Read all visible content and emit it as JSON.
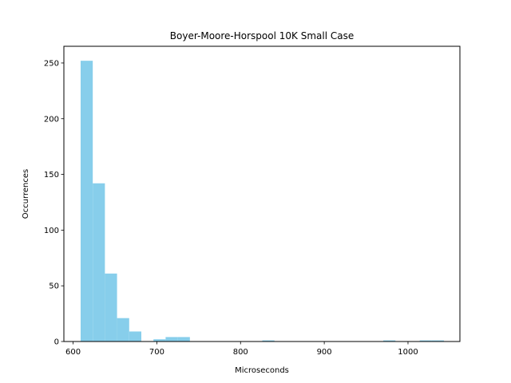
{
  "chart_data": {
    "type": "bar",
    "title": "Boyer-Moore-Horspool 10K Small Case",
    "xlabel": "Microseconds",
    "ylabel": "Occurrences",
    "xlim": [
      589,
      1062
    ],
    "ylim": [
      0,
      265
    ],
    "xticks": [
      600,
      700,
      800,
      900,
      1000
    ],
    "yticks": [
      0,
      50,
      100,
      150,
      200,
      250
    ],
    "bar_color": "#87ceeb",
    "grid": false,
    "bins": [
      {
        "x0": 609.0,
        "x1": 623.5,
        "value": 252
      },
      {
        "x0": 623.5,
        "x1": 638.0,
        "value": 142
      },
      {
        "x0": 638.0,
        "x1": 652.5,
        "value": 61
      },
      {
        "x0": 652.5,
        "x1": 667.0,
        "value": 21
      },
      {
        "x0": 667.0,
        "x1": 681.5,
        "value": 9
      },
      {
        "x0": 696.0,
        "x1": 710.5,
        "value": 2
      },
      {
        "x0": 710.5,
        "x1": 725.0,
        "value": 4
      },
      {
        "x0": 725.0,
        "x1": 739.5,
        "value": 4
      },
      {
        "x0": 826.0,
        "x1": 840.5,
        "value": 1
      },
      {
        "x0": 970.5,
        "x1": 985.0,
        "value": 1
      },
      {
        "x0": 1014.0,
        "x1": 1028.5,
        "value": 1
      },
      {
        "x0": 1028.5,
        "x1": 1043.0,
        "value": 1
      }
    ]
  }
}
